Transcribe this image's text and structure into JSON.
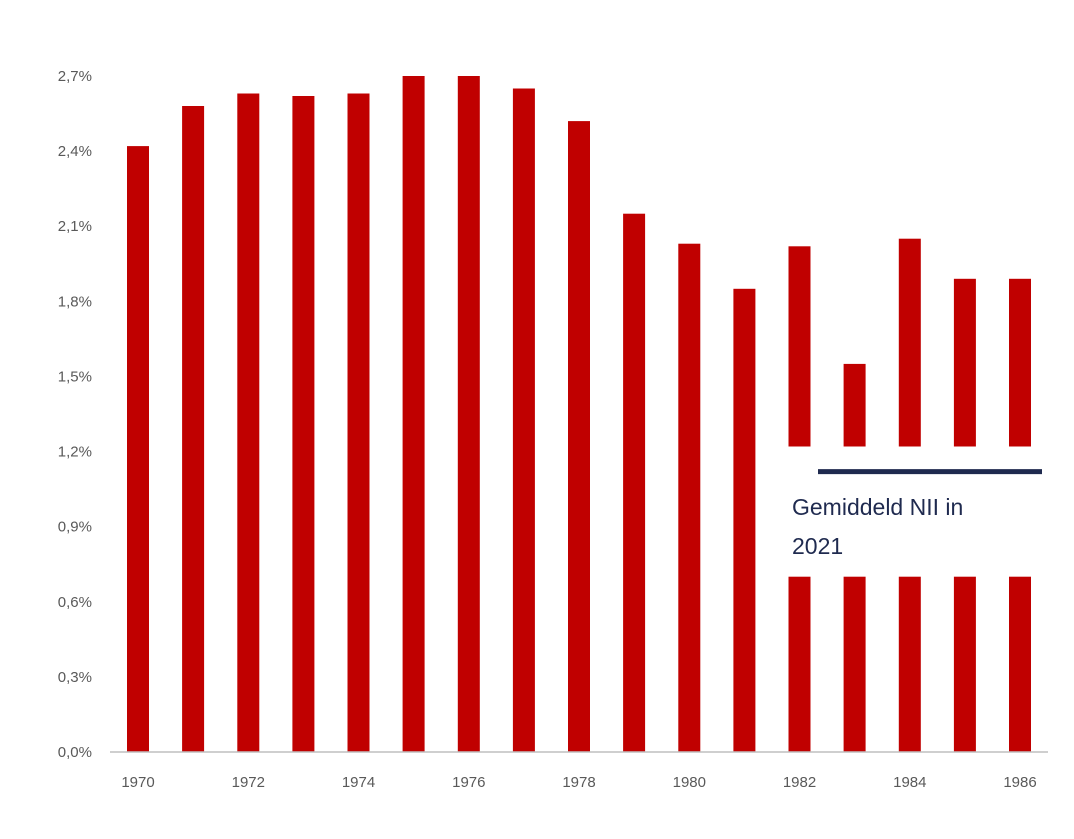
{
  "chart_data": {
    "type": "bar",
    "categories": [
      "1970",
      "1971",
      "1972",
      "1973",
      "1974",
      "1975",
      "1976",
      "1977",
      "1978",
      "1979",
      "1980",
      "1981",
      "1982",
      "1983",
      "1984",
      "1985",
      "1986"
    ],
    "x_tick_labels": [
      "1970",
      "1972",
      "1974",
      "1976",
      "1978",
      "1980",
      "1982",
      "1984",
      "1986"
    ],
    "values": [
      2.42,
      2.58,
      2.63,
      2.62,
      2.63,
      2.7,
      2.7,
      2.65,
      2.52,
      2.15,
      2.03,
      1.85,
      2.02,
      1.55,
      2.05,
      1.89,
      1.89
    ],
    "y_ticks": [
      "0,0%",
      "0,3%",
      "0,6%",
      "0,9%",
      "1,2%",
      "1,5%",
      "1,8%",
      "2,1%",
      "2,4%",
      "2,7%"
    ],
    "ylim": [
      0,
      2.7
    ],
    "title": "",
    "xlabel": "",
    "ylabel": "",
    "grid": false,
    "bar_color": "#c00000",
    "annotation": {
      "text_line1": "Gemiddeld NII in",
      "text_line2": "2021",
      "line_value": 1.12,
      "line_color": "#1f2a4f",
      "band_range": [
        0.7,
        1.22
      ]
    }
  }
}
